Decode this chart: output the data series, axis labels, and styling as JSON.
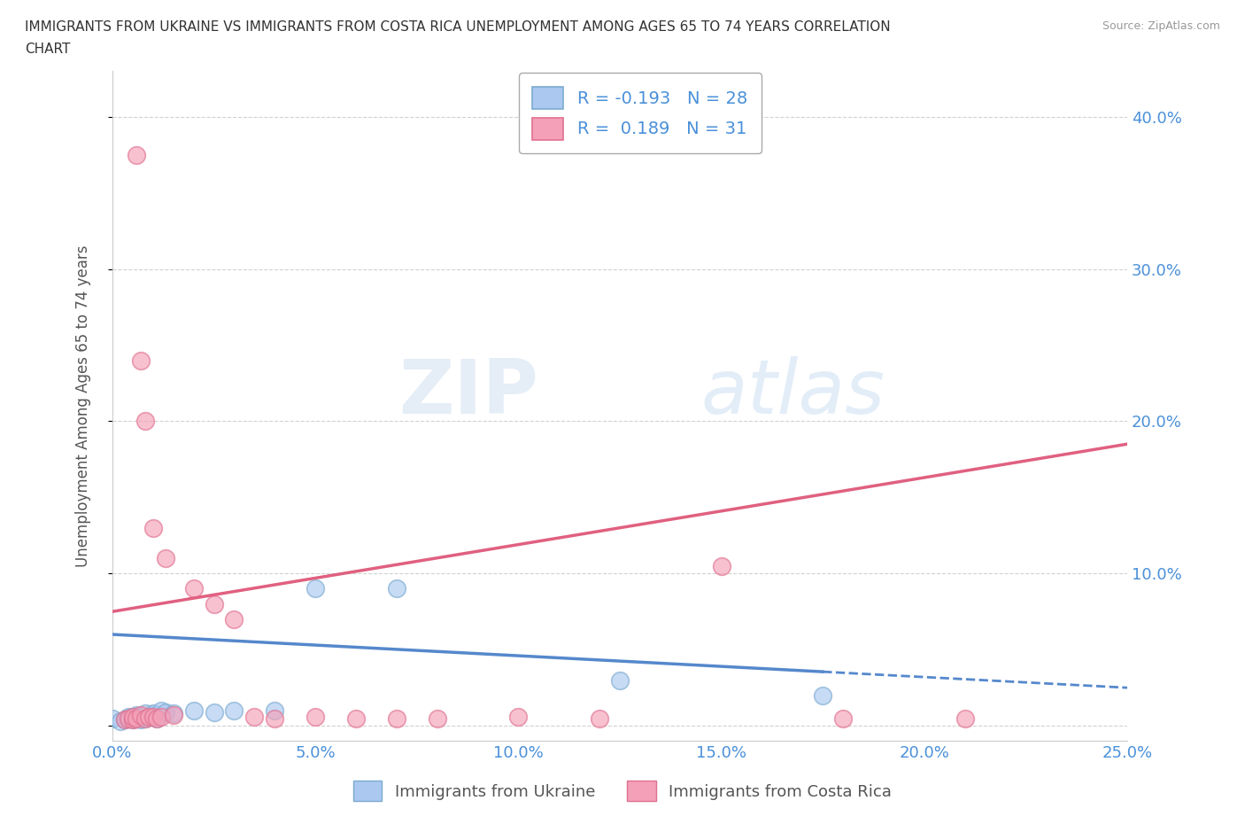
{
  "title_line1": "IMMIGRANTS FROM UKRAINE VS IMMIGRANTS FROM COSTA RICA UNEMPLOYMENT AMONG AGES 65 TO 74 YEARS CORRELATION",
  "title_line2": "CHART",
  "source": "Source: ZipAtlas.com",
  "ylabel": "Unemployment Among Ages 65 to 74 years",
  "xlim": [
    0.0,
    0.25
  ],
  "ylim": [
    -0.01,
    0.43
  ],
  "xticks": [
    0.0,
    0.05,
    0.1,
    0.15,
    0.2,
    0.25
  ],
  "yticks": [
    0.0,
    0.1,
    0.2,
    0.3,
    0.4
  ],
  "ytick_labels_right": [
    "",
    "10.0%",
    "20.0%",
    "30.0%",
    "40.0%"
  ],
  "xtick_labels": [
    "0.0%",
    "5.0%",
    "10.0%",
    "15.0%",
    "20.0%",
    "25.0%"
  ],
  "ukraine_color": "#aac8f0",
  "ukraine_edge_color": "#7aaad0",
  "costa_rica_color": "#f4a0b8",
  "costa_rica_edge_color": "#e07090",
  "ukraine_line_color": "#5588cc",
  "costa_rica_line_color": "#e06080",
  "ukraine_R": -0.193,
  "ukraine_N": 28,
  "costa_rica_R": 0.189,
  "costa_rica_N": 31,
  "ukraine_scatter_x": [
    0.0,
    0.002,
    0.003,
    0.004,
    0.004,
    0.005,
    0.005,
    0.006,
    0.006,
    0.007,
    0.007,
    0.008,
    0.008,
    0.009,
    0.01,
    0.01,
    0.011,
    0.012,
    0.013,
    0.015,
    0.02,
    0.025,
    0.03,
    0.04,
    0.05,
    0.07,
    0.125,
    0.175
  ],
  "ukraine_scatter_y": [
    0.005,
    0.003,
    0.004,
    0.005,
    0.006,
    0.004,
    0.006,
    0.005,
    0.007,
    0.004,
    0.006,
    0.005,
    0.008,
    0.006,
    0.007,
    0.008,
    0.005,
    0.01,
    0.009,
    0.008,
    0.01,
    0.009,
    0.01,
    0.01,
    0.09,
    0.09,
    0.03,
    0.02
  ],
  "costa_rica_scatter_x": [
    0.003,
    0.004,
    0.005,
    0.005,
    0.006,
    0.006,
    0.007,
    0.007,
    0.008,
    0.008,
    0.009,
    0.01,
    0.01,
    0.011,
    0.012,
    0.013,
    0.015,
    0.02,
    0.025,
    0.03,
    0.035,
    0.04,
    0.05,
    0.06,
    0.07,
    0.08,
    0.1,
    0.12,
    0.15,
    0.18,
    0.21
  ],
  "costa_rica_scatter_y": [
    0.004,
    0.005,
    0.004,
    0.006,
    0.005,
    0.375,
    0.007,
    0.24,
    0.005,
    0.2,
    0.006,
    0.006,
    0.13,
    0.005,
    0.006,
    0.11,
    0.007,
    0.09,
    0.08,
    0.07,
    0.006,
    0.005,
    0.006,
    0.005,
    0.005,
    0.005,
    0.006,
    0.005,
    0.105,
    0.005,
    0.005
  ],
  "watermark_zip": "ZIP",
  "watermark_atlas": "atlas",
  "grid_color": "#cccccc",
  "bg_color": "#ffffff",
  "ukraine_line_intercept": 0.06,
  "ukraine_line_slope": -0.14,
  "costa_rica_line_intercept": 0.075,
  "costa_rica_line_slope": 0.44
}
